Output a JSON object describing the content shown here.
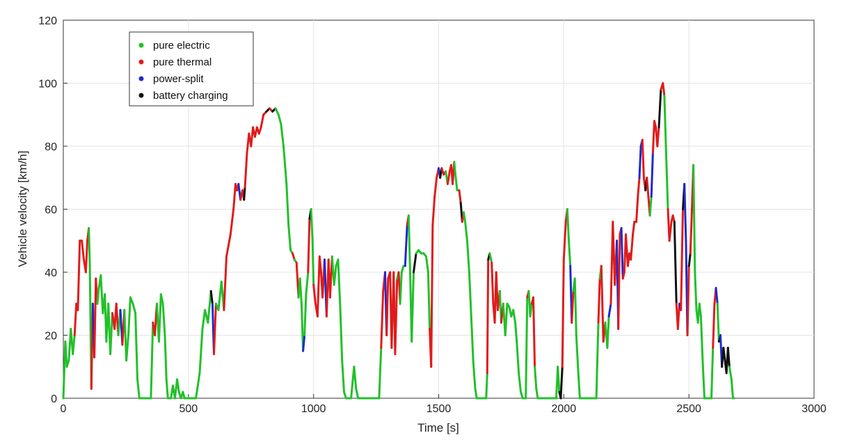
{
  "chart_data": {
    "type": "line",
    "title": "",
    "xlabel": "Time [s]",
    "ylabel": "Vehicle velocity [km/h]",
    "xlim": [
      0,
      3000
    ],
    "ylim": [
      0,
      120
    ],
    "xticks": [
      0,
      500,
      1000,
      1500,
      2000,
      2500,
      3000
    ],
    "yticks": [
      0,
      20,
      40,
      60,
      80,
      100,
      120
    ],
    "grid": true,
    "legend_position": "top-left",
    "legend": [
      {
        "key": "pure_electric",
        "label": "pure electric",
        "color": "#22c02a"
      },
      {
        "key": "pure_thermal",
        "label": "pure thermal",
        "color": "#e01b1b"
      },
      {
        "key": "power_split",
        "label": "power-split",
        "color": "#1f2ad0"
      },
      {
        "key": "battery_charging",
        "label": "battery charging",
        "color": "#111111"
      }
    ],
    "mode_codes": {
      "E": "pure_electric",
      "T": "pure_thermal",
      "P": "power_split",
      "B": "battery_charging"
    },
    "trace": [
      [
        0,
        0,
        "E"
      ],
      [
        8,
        18,
        "E"
      ],
      [
        14,
        10,
        "E"
      ],
      [
        22,
        12,
        "E"
      ],
      [
        30,
        22,
        "E"
      ],
      [
        38,
        14,
        "E"
      ],
      [
        45,
        20,
        "E"
      ],
      [
        52,
        30,
        "T"
      ],
      [
        58,
        28,
        "T"
      ],
      [
        66,
        50,
        "T"
      ],
      [
        74,
        50,
        "T"
      ],
      [
        82,
        44,
        "T"
      ],
      [
        90,
        40,
        "T"
      ],
      [
        96,
        50,
        "T"
      ],
      [
        102,
        54,
        "T"
      ],
      [
        106,
        42,
        "E"
      ],
      [
        112,
        3,
        "E"
      ],
      [
        118,
        30,
        "T"
      ],
      [
        124,
        13,
        "P"
      ],
      [
        130,
        38,
        "T"
      ],
      [
        136,
        30,
        "T"
      ],
      [
        142,
        35,
        "E"
      ],
      [
        150,
        39,
        "E"
      ],
      [
        158,
        27,
        "E"
      ],
      [
        166,
        33,
        "E"
      ],
      [
        172,
        18,
        "E"
      ],
      [
        180,
        30,
        "E"
      ],
      [
        188,
        14,
        "E"
      ],
      [
        196,
        27,
        "E"
      ],
      [
        205,
        22,
        "T"
      ],
      [
        212,
        30,
        "T"
      ],
      [
        220,
        20,
        "T"
      ],
      [
        228,
        28,
        "E"
      ],
      [
        236,
        17,
        "P"
      ],
      [
        244,
        28,
        "T"
      ],
      [
        252,
        12,
        "E"
      ],
      [
        260,
        20,
        "E"
      ],
      [
        268,
        32,
        "E"
      ],
      [
        278,
        30,
        "E"
      ],
      [
        288,
        27,
        "E"
      ],
      [
        296,
        6,
        "E"
      ],
      [
        304,
        0,
        "E"
      ],
      [
        350,
        0,
        "E"
      ],
      [
        358,
        24,
        "E"
      ],
      [
        366,
        20,
        "T"
      ],
      [
        374,
        30,
        "T"
      ],
      [
        382,
        18,
        "E"
      ],
      [
        390,
        33,
        "E"
      ],
      [
        398,
        30,
        "E"
      ],
      [
        406,
        20,
        "E"
      ],
      [
        412,
        6,
        "E"
      ],
      [
        418,
        0,
        "E"
      ],
      [
        430,
        0,
        "E"
      ],
      [
        438,
        4,
        "E"
      ],
      [
        446,
        0,
        "E"
      ],
      [
        455,
        6,
        "E"
      ],
      [
        462,
        2,
        "E"
      ],
      [
        470,
        0,
        "E"
      ],
      [
        478,
        2,
        "E"
      ],
      [
        484,
        0,
        "E"
      ],
      [
        530,
        0,
        "E"
      ],
      [
        545,
        8,
        "E"
      ],
      [
        556,
        22,
        "E"
      ],
      [
        566,
        28,
        "E"
      ],
      [
        578,
        24,
        "E"
      ],
      [
        590,
        34,
        "E"
      ],
      [
        596,
        30,
        "B"
      ],
      [
        602,
        14,
        "P"
      ],
      [
        610,
        30,
        "T"
      ],
      [
        620,
        28,
        "E"
      ],
      [
        632,
        37,
        "E"
      ],
      [
        642,
        28,
        "E"
      ],
      [
        652,
        45,
        "T"
      ],
      [
        668,
        52,
        "T"
      ],
      [
        680,
        60,
        "T"
      ],
      [
        688,
        68,
        "T"
      ],
      [
        694,
        66,
        "T"
      ],
      [
        700,
        68,
        "T"
      ],
      [
        708,
        63,
        "P"
      ],
      [
        716,
        66,
        "T"
      ],
      [
        722,
        63,
        "T"
      ],
      [
        726,
        67,
        "B"
      ],
      [
        734,
        78,
        "T"
      ],
      [
        742,
        84,
        "T"
      ],
      [
        750,
        80,
        "T"
      ],
      [
        758,
        86,
        "T"
      ],
      [
        766,
        83,
        "T"
      ],
      [
        774,
        86,
        "T"
      ],
      [
        782,
        84,
        "T"
      ],
      [
        790,
        86,
        "T"
      ],
      [
        800,
        90,
        "T"
      ],
      [
        812,
        91,
        "T"
      ],
      [
        824,
        92,
        "B"
      ],
      [
        836,
        91,
        "T"
      ],
      [
        848,
        92,
        "B"
      ],
      [
        860,
        90,
        "E"
      ],
      [
        870,
        87,
        "E"
      ],
      [
        880,
        80,
        "E"
      ],
      [
        892,
        68,
        "E"
      ],
      [
        900,
        55,
        "E"
      ],
      [
        908,
        47,
        "E"
      ],
      [
        916,
        46,
        "E"
      ],
      [
        924,
        44,
        "T"
      ],
      [
        932,
        43,
        "E"
      ],
      [
        940,
        32,
        "T"
      ],
      [
        946,
        38,
        "E"
      ],
      [
        952,
        30,
        "E"
      ],
      [
        958,
        15,
        "E"
      ],
      [
        964,
        20,
        "P"
      ],
      [
        970,
        33,
        "E"
      ],
      [
        978,
        40,
        "E"
      ],
      [
        984,
        57,
        "T"
      ],
      [
        990,
        60,
        "B"
      ],
      [
        996,
        50,
        "E"
      ],
      [
        1000,
        36,
        "E"
      ],
      [
        1008,
        30,
        "T"
      ],
      [
        1016,
        26,
        "T"
      ],
      [
        1024,
        45,
        "T"
      ],
      [
        1030,
        40,
        "T"
      ],
      [
        1036,
        32,
        "T"
      ],
      [
        1044,
        44,
        "T"
      ],
      [
        1052,
        26,
        "P"
      ],
      [
        1060,
        44,
        "T"
      ],
      [
        1066,
        32,
        "T"
      ],
      [
        1074,
        45,
        "T"
      ],
      [
        1082,
        36,
        "E"
      ],
      [
        1090,
        42,
        "E"
      ],
      [
        1098,
        44,
        "E"
      ],
      [
        1106,
        30,
        "E"
      ],
      [
        1114,
        12,
        "E"
      ],
      [
        1122,
        2,
        "E"
      ],
      [
        1130,
        0,
        "E"
      ],
      [
        1150,
        0,
        "E"
      ],
      [
        1162,
        10,
        "E"
      ],
      [
        1170,
        3,
        "E"
      ],
      [
        1178,
        0,
        "E"
      ],
      [
        1262,
        0,
        "E"
      ],
      [
        1270,
        16,
        "E"
      ],
      [
        1278,
        34,
        "T"
      ],
      [
        1286,
        40,
        "T"
      ],
      [
        1292,
        20,
        "P"
      ],
      [
        1298,
        38,
        "T"
      ],
      [
        1306,
        40,
        "T"
      ],
      [
        1312,
        16,
        "T"
      ],
      [
        1320,
        40,
        "T"
      ],
      [
        1326,
        14,
        "T"
      ],
      [
        1334,
        38,
        "T"
      ],
      [
        1340,
        40,
        "E"
      ],
      [
        1346,
        30,
        "T"
      ],
      [
        1352,
        40,
        "E"
      ],
      [
        1360,
        42,
        "E"
      ],
      [
        1366,
        42,
        "E"
      ],
      [
        1374,
        55,
        "P"
      ],
      [
        1380,
        58,
        "T"
      ],
      [
        1386,
        40,
        "E"
      ],
      [
        1392,
        18,
        "E"
      ],
      [
        1400,
        40,
        "E"
      ],
      [
        1410,
        46,
        "B"
      ],
      [
        1420,
        47,
        "E"
      ],
      [
        1430,
        46,
        "E"
      ],
      [
        1440,
        46,
        "E"
      ],
      [
        1450,
        45,
        "E"
      ],
      [
        1458,
        40,
        "E"
      ],
      [
        1464,
        22,
        "E"
      ],
      [
        1470,
        10,
        "T"
      ],
      [
        1476,
        55,
        "T"
      ],
      [
        1484,
        64,
        "T"
      ],
      [
        1492,
        70,
        "T"
      ],
      [
        1500,
        73,
        "T"
      ],
      [
        1506,
        70,
        "P"
      ],
      [
        1512,
        73,
        "B"
      ],
      [
        1520,
        71,
        "T"
      ],
      [
        1528,
        72,
        "T"
      ],
      [
        1536,
        68,
        "E"
      ],
      [
        1544,
        72,
        "T"
      ],
      [
        1550,
        74,
        "T"
      ],
      [
        1556,
        68,
        "T"
      ],
      [
        1562,
        75,
        "T"
      ],
      [
        1568,
        70,
        "E"
      ],
      [
        1574,
        66,
        "E"
      ],
      [
        1582,
        66,
        "E"
      ],
      [
        1588,
        62,
        "T"
      ],
      [
        1594,
        56,
        "B"
      ],
      [
        1600,
        59,
        "T"
      ],
      [
        1606,
        56,
        "E"
      ],
      [
        1614,
        50,
        "E"
      ],
      [
        1622,
        40,
        "E"
      ],
      [
        1630,
        26,
        "E"
      ],
      [
        1638,
        12,
        "E"
      ],
      [
        1646,
        3,
        "E"
      ],
      [
        1652,
        0,
        "E"
      ],
      [
        1690,
        0,
        "E"
      ],
      [
        1694,
        8,
        "E"
      ],
      [
        1698,
        44,
        "T"
      ],
      [
        1704,
        46,
        "B"
      ],
      [
        1712,
        43,
        "E"
      ],
      [
        1718,
        30,
        "T"
      ],
      [
        1724,
        24,
        "T"
      ],
      [
        1730,
        40,
        "T"
      ],
      [
        1736,
        28,
        "T"
      ],
      [
        1744,
        34,
        "T"
      ],
      [
        1750,
        24,
        "E"
      ],
      [
        1758,
        30,
        "T"
      ],
      [
        1766,
        20,
        "E"
      ],
      [
        1774,
        30,
        "E"
      ],
      [
        1782,
        29,
        "E"
      ],
      [
        1790,
        26,
        "E"
      ],
      [
        1798,
        28,
        "E"
      ],
      [
        1806,
        24,
        "E"
      ],
      [
        1812,
        18,
        "E"
      ],
      [
        1820,
        8,
        "E"
      ],
      [
        1828,
        2,
        "E"
      ],
      [
        1836,
        0,
        "E"
      ],
      [
        1848,
        0,
        "E"
      ],
      [
        1854,
        32,
        "E"
      ],
      [
        1860,
        34,
        "T"
      ],
      [
        1866,
        26,
        "E"
      ],
      [
        1872,
        30,
        "E"
      ],
      [
        1878,
        32,
        "T"
      ],
      [
        1884,
        10,
        "T"
      ],
      [
        1890,
        3,
        "E"
      ],
      [
        1896,
        0,
        "E"
      ],
      [
        1970,
        0,
        "E"
      ],
      [
        1976,
        10,
        "E"
      ],
      [
        1982,
        2,
        "E"
      ],
      [
        1988,
        0,
        "B"
      ],
      [
        1994,
        10,
        "B"
      ],
      [
        2000,
        44,
        "T"
      ],
      [
        2008,
        56,
        "T"
      ],
      [
        2014,
        60,
        "T"
      ],
      [
        2020,
        50,
        "E"
      ],
      [
        2026,
        42,
        "E"
      ],
      [
        2032,
        24,
        "P"
      ],
      [
        2038,
        34,
        "T"
      ],
      [
        2044,
        38,
        "E"
      ],
      [
        2050,
        20,
        "E"
      ],
      [
        2058,
        8,
        "E"
      ],
      [
        2064,
        0,
        "E"
      ],
      [
        2130,
        0,
        "E"
      ],
      [
        2138,
        24,
        "E"
      ],
      [
        2144,
        38,
        "T"
      ],
      [
        2150,
        42,
        "E"
      ],
      [
        2158,
        18,
        "T"
      ],
      [
        2166,
        24,
        "T"
      ],
      [
        2174,
        16,
        "E"
      ],
      [
        2180,
        26,
        "E"
      ],
      [
        2188,
        30,
        "P"
      ],
      [
        2196,
        56,
        "T"
      ],
      [
        2204,
        36,
        "T"
      ],
      [
        2212,
        50,
        "T"
      ],
      [
        2218,
        22,
        "P"
      ],
      [
        2224,
        52,
        "T"
      ],
      [
        2230,
        54,
        "T"
      ],
      [
        2236,
        38,
        "P"
      ],
      [
        2242,
        40,
        "T"
      ],
      [
        2248,
        52,
        "T"
      ],
      [
        2256,
        42,
        "T"
      ],
      [
        2262,
        46,
        "T"
      ],
      [
        2268,
        44,
        "T"
      ],
      [
        2276,
        52,
        "T"
      ],
      [
        2282,
        56,
        "T"
      ],
      [
        2290,
        56,
        "T"
      ],
      [
        2296,
        64,
        "T"
      ],
      [
        2302,
        70,
        "T"
      ],
      [
        2308,
        80,
        "P"
      ],
      [
        2314,
        82,
        "P"
      ],
      [
        2320,
        70,
        "T"
      ],
      [
        2326,
        66,
        "T"
      ],
      [
        2332,
        70,
        "B"
      ],
      [
        2338,
        64,
        "T"
      ],
      [
        2344,
        58,
        "T"
      ],
      [
        2350,
        64,
        "E"
      ],
      [
        2356,
        78,
        "P"
      ],
      [
        2362,
        88,
        "T"
      ],
      [
        2368,
        86,
        "T"
      ],
      [
        2374,
        80,
        "T"
      ],
      [
        2380,
        86,
        "T"
      ],
      [
        2388,
        98,
        "B"
      ],
      [
        2396,
        100,
        "T"
      ],
      [
        2402,
        96,
        "T"
      ],
      [
        2408,
        80,
        "E"
      ],
      [
        2416,
        60,
        "E"
      ],
      [
        2422,
        50,
        "T"
      ],
      [
        2430,
        56,
        "T"
      ],
      [
        2436,
        58,
        "T"
      ],
      [
        2442,
        56,
        "T"
      ],
      [
        2450,
        30,
        "B"
      ],
      [
        2456,
        22,
        "T"
      ],
      [
        2462,
        30,
        "T"
      ],
      [
        2468,
        28,
        "P"
      ],
      [
        2476,
        60,
        "T"
      ],
      [
        2482,
        68,
        "B"
      ],
      [
        2488,
        50,
        "P"
      ],
      [
        2494,
        20,
        "P"
      ],
      [
        2500,
        42,
        "T"
      ],
      [
        2506,
        46,
        "B"
      ],
      [
        2512,
        60,
        "T"
      ],
      [
        2518,
        74,
        "T"
      ],
      [
        2524,
        40,
        "E"
      ],
      [
        2530,
        28,
        "E"
      ],
      [
        2536,
        24,
        "E"
      ],
      [
        2542,
        30,
        "E"
      ],
      [
        2548,
        26,
        "E"
      ],
      [
        2556,
        10,
        "E"
      ],
      [
        2562,
        0,
        "E"
      ],
      [
        2590,
        0,
        "E"
      ],
      [
        2596,
        16,
        "E"
      ],
      [
        2602,
        30,
        "T"
      ],
      [
        2608,
        35,
        "T"
      ],
      [
        2614,
        30,
        "P"
      ],
      [
        2620,
        18,
        "E"
      ],
      [
        2626,
        20,
        "B"
      ],
      [
        2632,
        10,
        "P"
      ],
      [
        2638,
        16,
        "B"
      ],
      [
        2644,
        12,
        "B"
      ],
      [
        2650,
        8,
        "B"
      ],
      [
        2656,
        16,
        "B"
      ],
      [
        2662,
        10,
        "B"
      ],
      [
        2670,
        6,
        "E"
      ],
      [
        2676,
        0,
        "E"
      ],
      [
        2680,
        0,
        "E"
      ]
    ]
  }
}
